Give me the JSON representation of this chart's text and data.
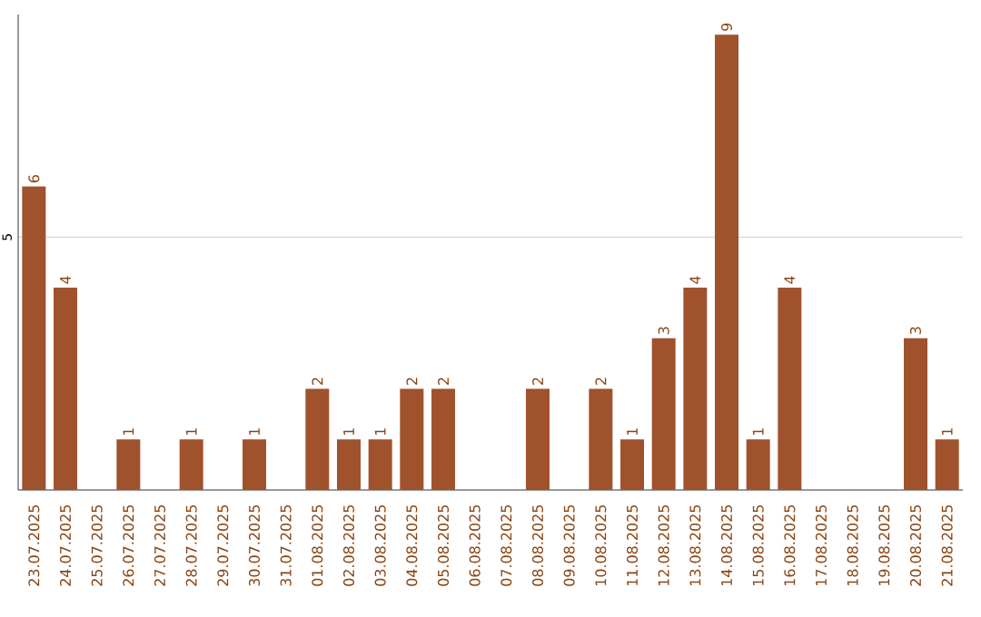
{
  "chart_data": {
    "type": "bar",
    "categories": [
      "23.07.2025",
      "24.07.2025",
      "25.07.2025",
      "26.07.2025",
      "27.07.2025",
      "28.07.2025",
      "29.07.2025",
      "30.07.2025",
      "31.07.2025",
      "01.08.2025",
      "02.08.2025",
      "03.08.2025",
      "04.08.2025",
      "05.08.2025",
      "06.08.2025",
      "07.08.2025",
      "08.08.2025",
      "09.08.2025",
      "10.08.2025",
      "11.08.2025",
      "12.08.2025",
      "13.08.2025",
      "14.08.2025",
      "15.08.2025",
      "16.08.2025",
      "17.08.2025",
      "18.08.2025",
      "19.08.2025",
      "20.08.2025",
      "21.08.2025"
    ],
    "values": [
      6,
      4,
      0,
      1,
      0,
      1,
      0,
      1,
      0,
      2,
      1,
      1,
      2,
      2,
      0,
      0,
      2,
      0,
      2,
      1,
      3,
      4,
      9,
      1,
      4,
      0,
      0,
      0,
      3,
      1
    ],
    "value_labels": [
      "6",
      "4",
      null,
      "1",
      null,
      "1",
      null,
      "1",
      null,
      "2",
      "1",
      "1",
      "2",
      "2",
      null,
      null,
      "2",
      null,
      "2",
      "1",
      "3",
      "4",
      "9",
      "1",
      "4",
      null,
      null,
      null,
      "3",
      "1"
    ],
    "color": "#a0522d",
    "ylim": [
      0,
      9.4
    ],
    "yticks": [
      5
    ],
    "grid": "y"
  }
}
